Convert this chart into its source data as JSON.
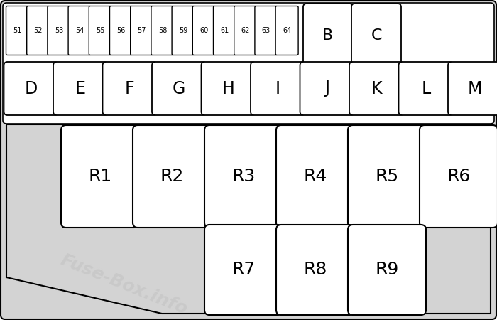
{
  "bg_color": "#d3d3d3",
  "box_color": "#ffffff",
  "box_edge": "#000000",
  "watermark_color": "#c8c8c8",
  "watermark_text": "Fuse-Box.info",
  "small_fuses": [
    "51",
    "52",
    "53",
    "54",
    "55",
    "56",
    "57",
    "58",
    "59",
    "60",
    "61",
    "62",
    "63",
    "64"
  ],
  "medium_fuses_BC": [
    "B",
    "C"
  ],
  "medium_fuses_row2": [
    "D",
    "E",
    "F",
    "G",
    "H",
    "I",
    "J",
    "K",
    "L",
    "M"
  ],
  "relays_row1": [
    "R1",
    "R2",
    "R3",
    "R4",
    "R5",
    "R6"
  ],
  "relays_row2": [
    "R7",
    "R8",
    "R9"
  ],
  "fig_width": 7.0,
  "fig_height": 4.5,
  "dpi": 100
}
